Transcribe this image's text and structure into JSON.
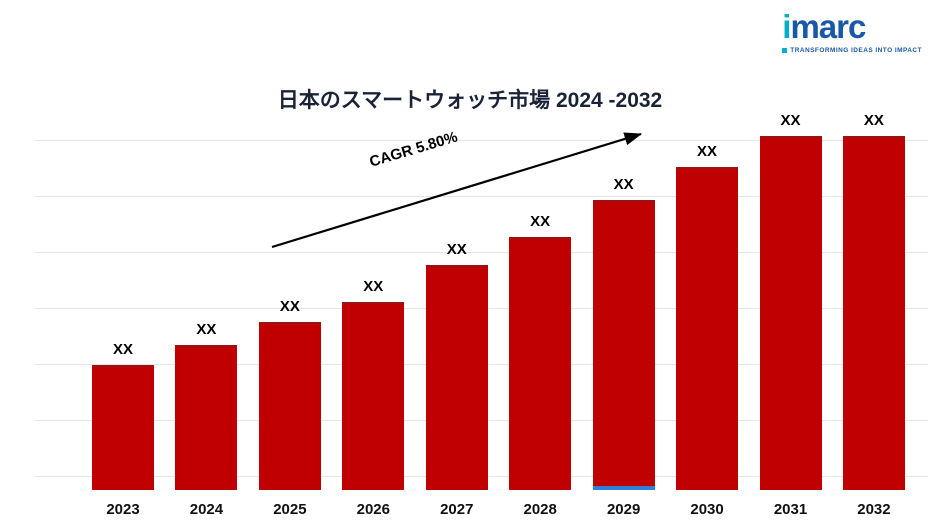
{
  "logo": {
    "brand_i": "i",
    "brand_rest": "marc",
    "tagline": "TRANSFORMING IDEAS INTO IMPACT",
    "colors": {
      "teal": "#00b0ca",
      "blue": "#1958a6"
    }
  },
  "chart_data": {
    "type": "bar",
    "title": "日本のスマートウォッチ市場 2024 -2032",
    "categories": [
      "2023",
      "2024",
      "2025",
      "2026",
      "2027",
      "2028",
      "2029",
      "2030",
      "2031",
      "2032"
    ],
    "values": [
      "XX",
      "XX",
      "XX",
      "XX",
      "XX",
      "XX",
      "XX",
      "XX",
      "XX",
      "XX"
    ],
    "bar_heights_pct": [
      32.6,
      37.9,
      44.0,
      49.1,
      58.9,
      66.3,
      75.1,
      84.9,
      93.6,
      100
    ],
    "bar_color": "#c00000",
    "annotation": "CAGR 5.80%",
    "grid": "horizontal",
    "legend": "none",
    "xlabel": "",
    "ylabel": ""
  }
}
